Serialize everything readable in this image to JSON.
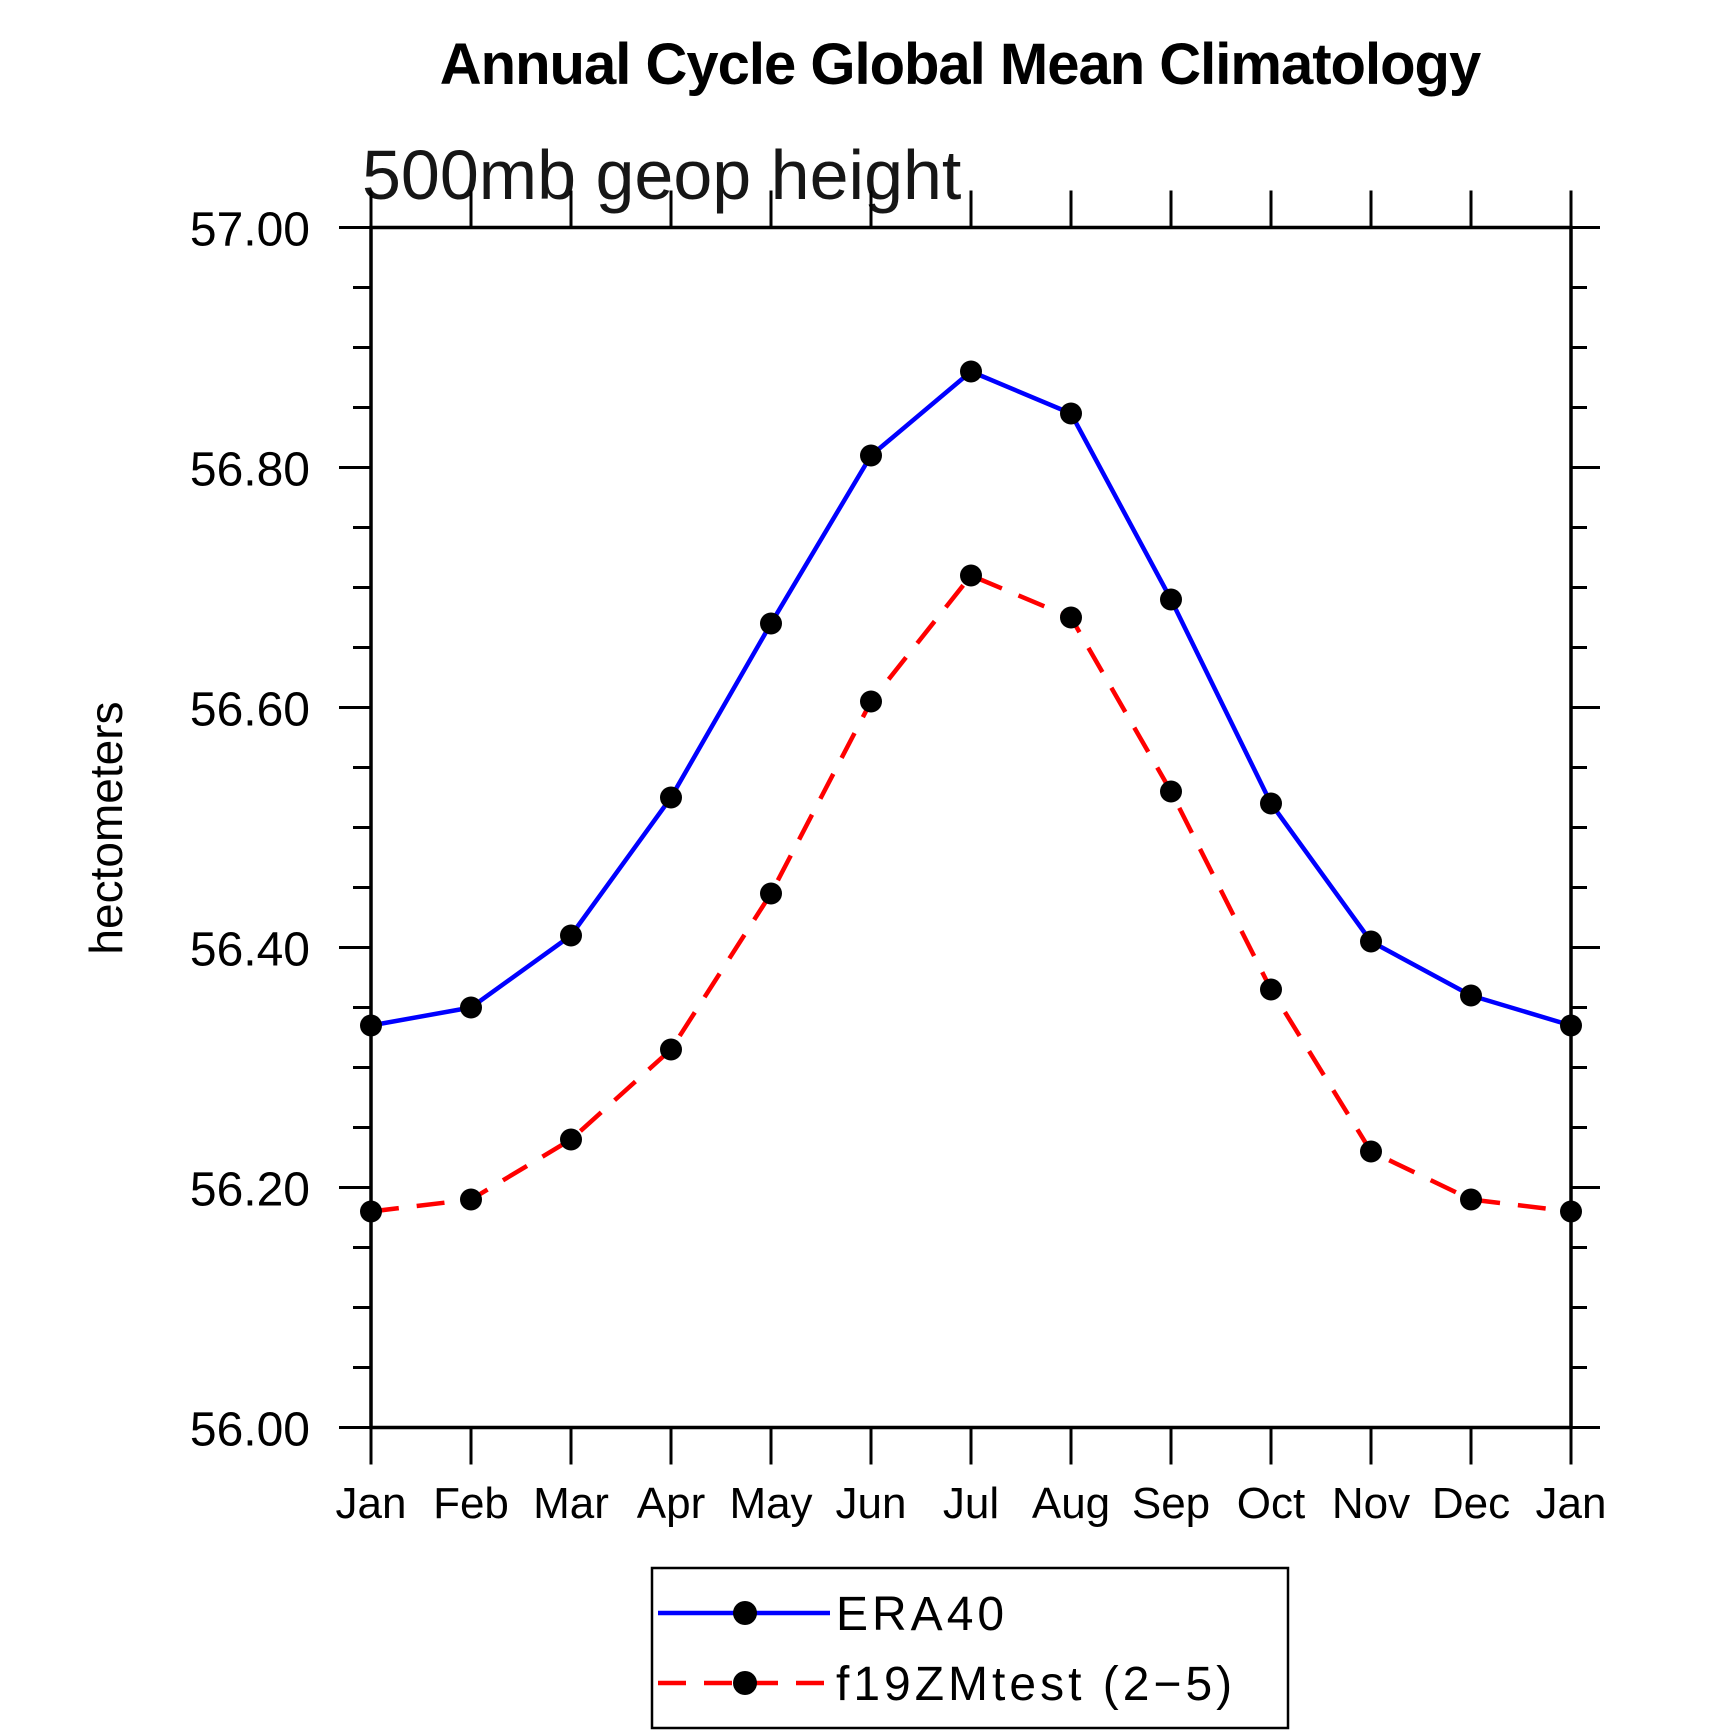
{
  "chart_data": {
    "type": "line",
    "title": "Annual Cycle Global Mean Climatology",
    "subtitle": "500mb geop height",
    "ylabel": "hectometers",
    "xlabel": "",
    "categories": [
      "Jan",
      "Feb",
      "Mar",
      "Apr",
      "May",
      "Jun",
      "Jul",
      "Aug",
      "Sep",
      "Oct",
      "Nov",
      "Dec",
      "Jan"
    ],
    "ylim": [
      56.0,
      57.0
    ],
    "ytick_major": 0.2,
    "ytick_minor": 0.05,
    "ytick_labels": [
      "56.00",
      "56.20",
      "56.40",
      "56.60",
      "56.80",
      "57.00"
    ],
    "grid": false,
    "legend_position": "bottom-center",
    "frame_color": "#000000",
    "series": [
      {
        "name": "ERA40",
        "color": "#0000ff",
        "line_style": "solid",
        "marker": "filled-circle",
        "marker_color": "#000000",
        "values": [
          56.335,
          56.35,
          56.41,
          56.525,
          56.67,
          56.81,
          56.88,
          56.845,
          56.69,
          56.52,
          56.405,
          56.36,
          56.335
        ]
      },
      {
        "name": "f19ZMtest (2−5)",
        "color": "#ff0000",
        "line_style": "dashed",
        "marker": "filled-circle",
        "marker_color": "#000000",
        "values": [
          56.18,
          56.19,
          56.24,
          56.315,
          56.445,
          56.605,
          56.71,
          56.675,
          56.53,
          56.365,
          56.23,
          56.19,
          56.18
        ]
      }
    ]
  }
}
